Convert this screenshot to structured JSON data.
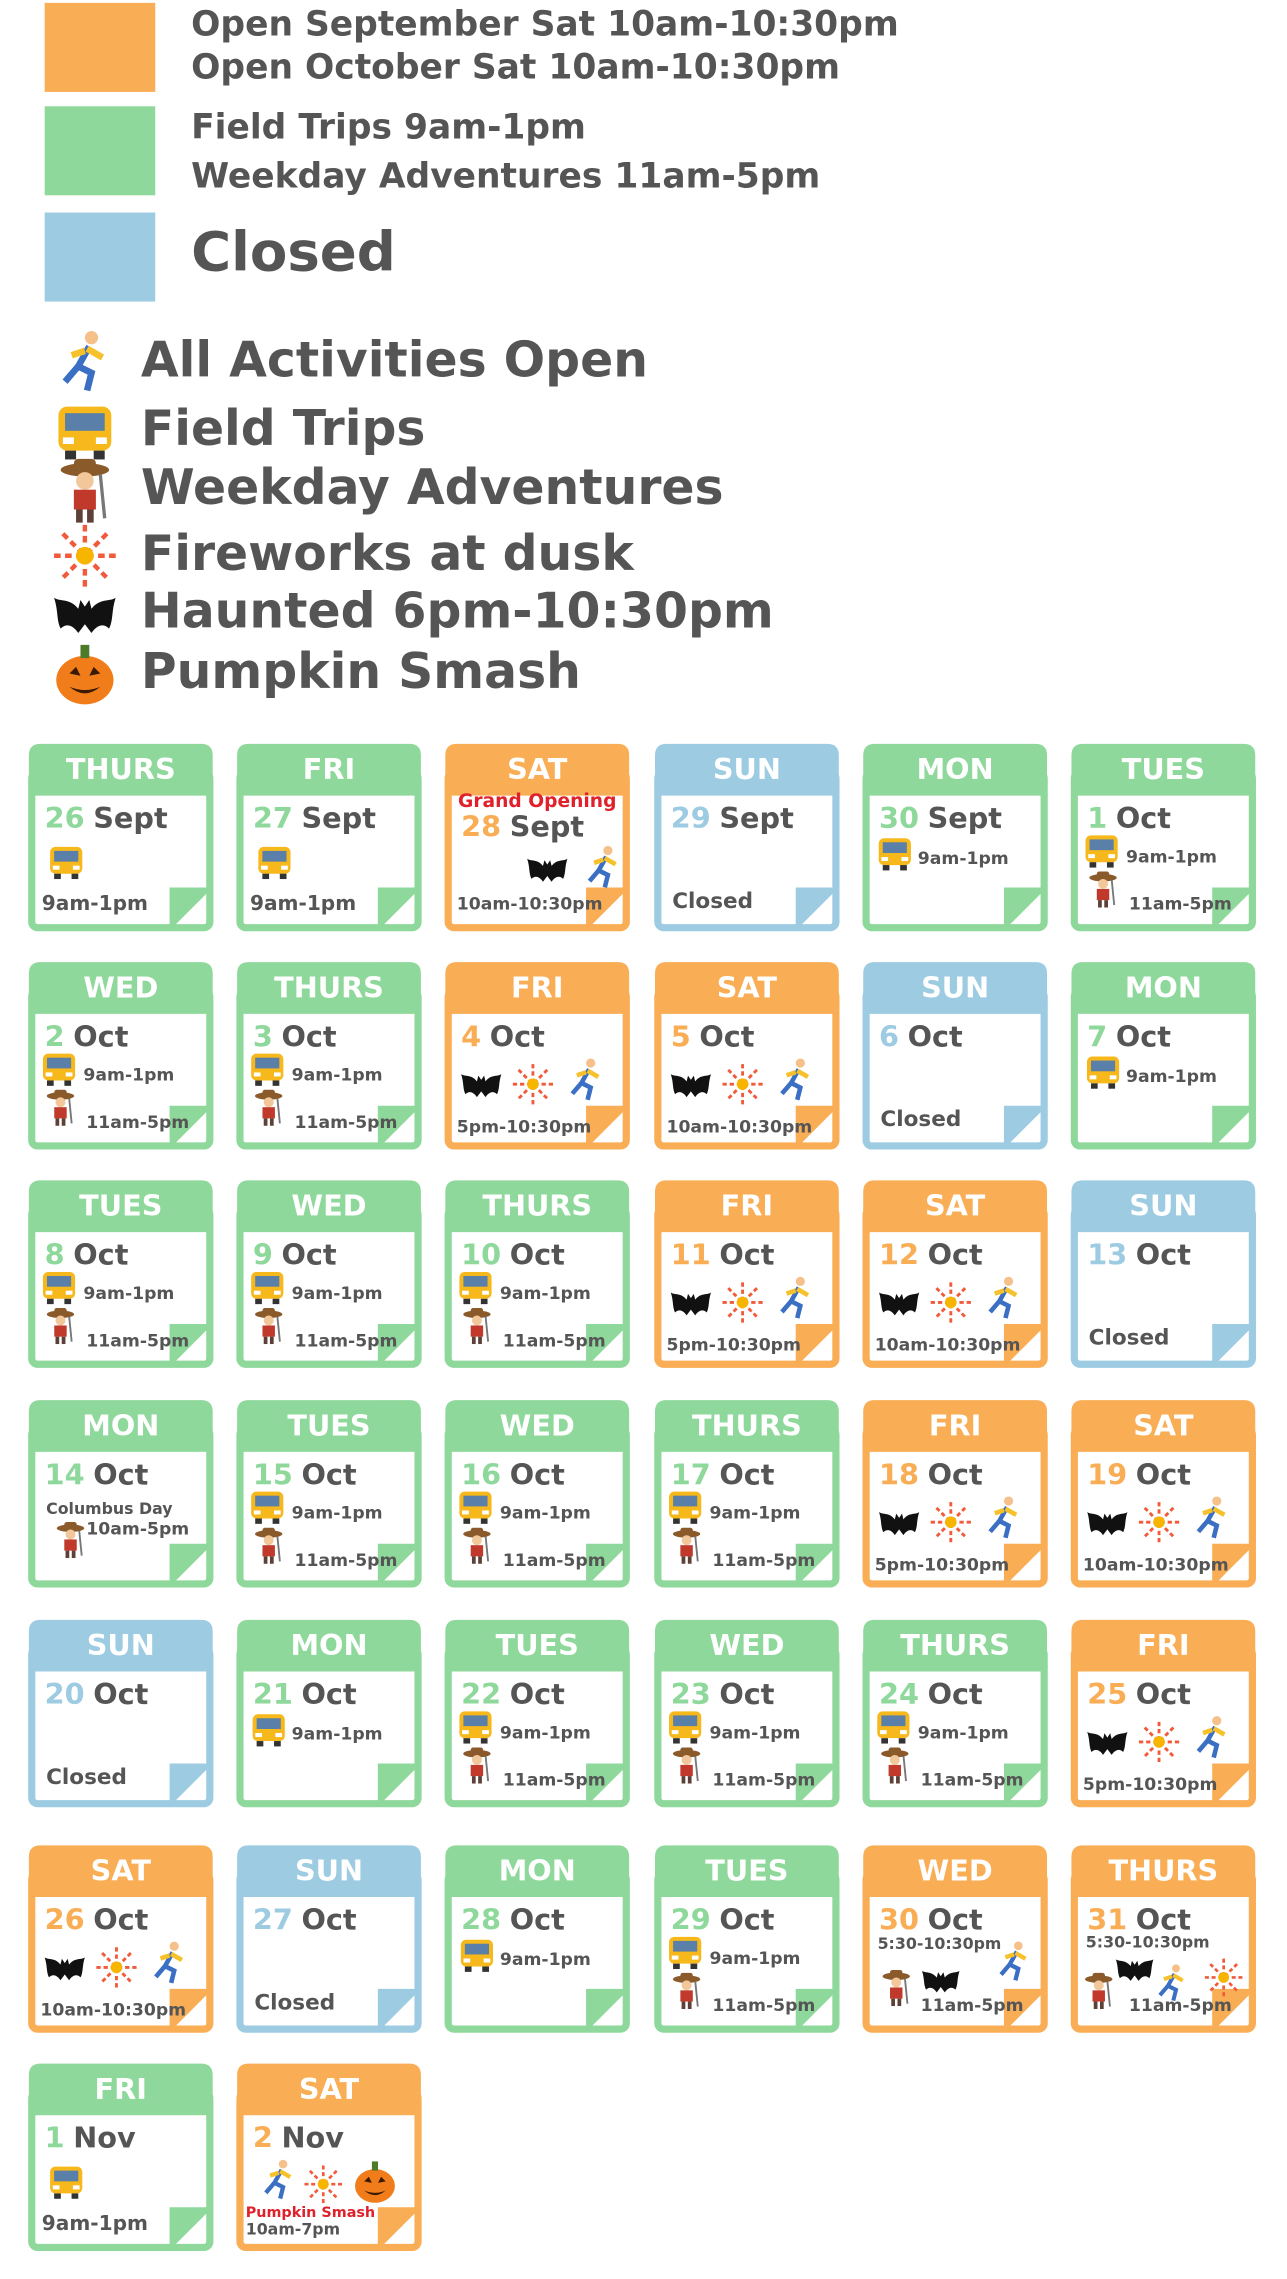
{
  "legend": {
    "schedule": [
      {
        "lines": [
          "Open September Sat 10am-10:30pm",
          "Open October Sat 10am-10:30pm"
        ]
      },
      {
        "lines": [
          "Field Trips  9am-1pm",
          "Weekday Adventures 11am-5pm"
        ]
      },
      {
        "lines": [
          "Closed"
        ]
      }
    ],
    "icons": [
      "All Activities Open",
      "Field Trips",
      "Weekday Adventures",
      "Fireworks at dusk",
      "Haunted 6pm-10:30pm",
      "Pumpkin Smash"
    ]
  },
  "calendar": {
    "days": [
      {
        "weekday": "THURS",
        "day": "26",
        "month": "Sept",
        "times": [
          "9am-1pm"
        ]
      },
      {
        "weekday": "FRI",
        "day": "27",
        "month": "Sept",
        "times": [
          "9am-1pm"
        ]
      },
      {
        "weekday": "SAT",
        "day": "28",
        "month": "Sept",
        "note": "Grand Opening",
        "times": [
          "10am-10:30pm"
        ]
      },
      {
        "weekday": "SUN",
        "day": "29",
        "month": "Sept",
        "times": [
          "Closed"
        ]
      },
      {
        "weekday": "MON",
        "day": "30",
        "month": "Sept",
        "times": [
          "9am-1pm"
        ]
      },
      {
        "weekday": "TUES",
        "day": "1",
        "month": "Oct",
        "times": [
          "9am-1pm",
          "11am-5pm"
        ]
      },
      {
        "weekday": "WED",
        "day": "2",
        "month": "Oct",
        "times": [
          "9am-1pm",
          "11am-5pm"
        ]
      },
      {
        "weekday": "THURS",
        "day": "3",
        "month": "Oct",
        "times": [
          "9am-1pm",
          "11am-5pm"
        ]
      },
      {
        "weekday": "FRI",
        "day": "4",
        "month": "Oct",
        "times": [
          "5pm-10:30pm"
        ]
      },
      {
        "weekday": "SAT",
        "day": "5",
        "month": "Oct",
        "times": [
          "10am-10:30pm"
        ]
      },
      {
        "weekday": "SUN",
        "day": "6",
        "month": "Oct",
        "times": [
          "Closed"
        ]
      },
      {
        "weekday": "MON",
        "day": "7",
        "month": "Oct",
        "times": [
          "9am-1pm"
        ]
      },
      {
        "weekday": "TUES",
        "day": "8",
        "month": "Oct",
        "times": [
          "9am-1pm",
          "11am-5pm"
        ]
      },
      {
        "weekday": "WED",
        "day": "9",
        "month": "Oct",
        "times": [
          "9am-1pm",
          "11am-5pm"
        ]
      },
      {
        "weekday": "THURS",
        "day": "10",
        "month": "Oct",
        "times": [
          "9am-1pm",
          "11am-5pm"
        ]
      },
      {
        "weekday": "FRI",
        "day": "11",
        "month": "Oct",
        "times": [
          "5pm-10:30pm"
        ]
      },
      {
        "weekday": "SAT",
        "day": "12",
        "month": "Oct",
        "times": [
          "10am-10:30pm"
        ]
      },
      {
        "weekday": "SUN",
        "day": "13",
        "month": "Oct",
        "times": [
          "Closed"
        ]
      },
      {
        "weekday": "MON",
        "day": "14",
        "month": "Oct",
        "note": "Columbus Day",
        "times": [
          "10am-5pm"
        ]
      },
      {
        "weekday": "TUES",
        "day": "15",
        "month": "Oct",
        "times": [
          "9am-1pm",
          "11am-5pm"
        ]
      },
      {
        "weekday": "WED",
        "day": "16",
        "month": "Oct",
        "times": [
          "9am-1pm",
          "11am-5pm"
        ]
      },
      {
        "weekday": "THURS",
        "day": "17",
        "month": "Oct",
        "times": [
          "9am-1pm",
          "11am-5pm"
        ]
      },
      {
        "weekday": "FRI",
        "day": "18",
        "month": "Oct",
        "times": [
          "5pm-10:30pm"
        ]
      },
      {
        "weekday": "SAT",
        "day": "19",
        "month": "Oct",
        "times": [
          "10am-10:30pm"
        ]
      },
      {
        "weekday": "SUN",
        "day": "20",
        "month": "Oct",
        "times": [
          "Closed"
        ]
      },
      {
        "weekday": "MON",
        "day": "21",
        "month": "Oct",
        "times": [
          "9am-1pm"
        ]
      },
      {
        "weekday": "TUES",
        "day": "22",
        "month": "Oct",
        "times": [
          "9am-1pm",
          "11am-5pm"
        ]
      },
      {
        "weekday": "WED",
        "day": "23",
        "month": "Oct",
        "times": [
          "9am-1pm",
          "11am-5pm"
        ]
      },
      {
        "weekday": "THURS",
        "day": "24",
        "month": "Oct",
        "times": [
          "9am-1pm",
          "11am-5pm"
        ]
      },
      {
        "weekday": "FRI",
        "day": "25",
        "month": "Oct",
        "times": [
          "5pm-10:30pm"
        ]
      },
      {
        "weekday": "SAT",
        "day": "26",
        "month": "Oct",
        "times": [
          "10am-10:30pm"
        ]
      },
      {
        "weekday": "SUN",
        "day": "27",
        "month": "Oct",
        "times": [
          "Closed"
        ]
      },
      {
        "weekday": "MON",
        "day": "28",
        "month": "Oct",
        "times": [
          "9am-1pm"
        ]
      },
      {
        "weekday": "TUES",
        "day": "29",
        "month": "Oct",
        "times": [
          "9am-1pm",
          "11am-5pm"
        ]
      },
      {
        "weekday": "WED",
        "day": "30",
        "month": "Oct",
        "times": [
          "5:30-10:30pm",
          "11am-5pm"
        ]
      },
      {
        "weekday": "THURS",
        "day": "31",
        "month": "Oct",
        "times": [
          "5:30-10:30pm",
          "11am-5pm"
        ]
      },
      {
        "weekday": "FRI",
        "day": "1",
        "month": "Nov",
        "times": [
          "9am-1pm"
        ]
      },
      {
        "weekday": "SAT",
        "day": "2",
        "month": "Nov",
        "note": "Pumpkin Smash",
        "times": [
          "10am-7pm"
        ]
      }
    ]
  }
}
